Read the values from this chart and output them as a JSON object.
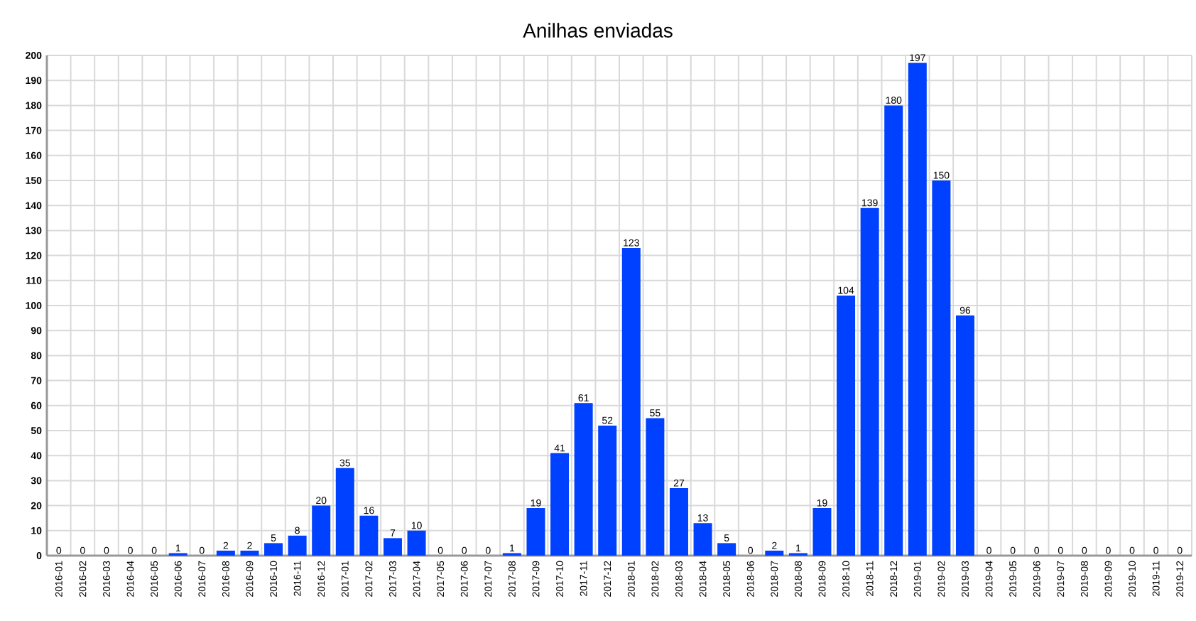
{
  "chart_data": {
    "type": "bar",
    "title": "Anilhas enviadas",
    "categories": [
      "2016-01",
      "2016-02",
      "2016-03",
      "2016-04",
      "2016-05",
      "2016-06",
      "2016-07",
      "2016-08",
      "2016-09",
      "2016-10",
      "2016-11",
      "2016-12",
      "2017-01",
      "2017-02",
      "2017-03",
      "2017-04",
      "2017-05",
      "2017-06",
      "2017-07",
      "2017-08",
      "2017-09",
      "2017-10",
      "2017-11",
      "2017-12",
      "2018-01",
      "2018-02",
      "2018-03",
      "2018-04",
      "2018-05",
      "2018-06",
      "2018-07",
      "2018-08",
      "2018-09",
      "2018-10",
      "2018-11",
      "2018-12",
      "2019-01",
      "2019-02",
      "2019-03",
      "2019-04",
      "2019-05",
      "2019-06",
      "2019-07",
      "2019-08",
      "2019-09",
      "2019-10",
      "2019-11",
      "2019-12"
    ],
    "values": [
      0,
      0,
      0,
      0,
      0,
      1,
      0,
      2,
      2,
      5,
      8,
      20,
      35,
      16,
      7,
      10,
      0,
      0,
      0,
      1,
      19,
      41,
      61,
      52,
      123,
      55,
      27,
      13,
      5,
      0,
      2,
      1,
      19,
      104,
      139,
      180,
      197,
      150,
      96,
      0,
      0,
      0,
      0,
      0,
      0,
      0,
      0,
      0
    ],
    "color": "#0040ff",
    "ylim": [
      0,
      200
    ],
    "yticks": [
      0,
      10,
      20,
      30,
      40,
      50,
      60,
      70,
      80,
      90,
      100,
      110,
      120,
      130,
      140,
      150,
      160,
      170,
      180,
      190,
      200
    ],
    "grid": true,
    "data_labels": true
  }
}
